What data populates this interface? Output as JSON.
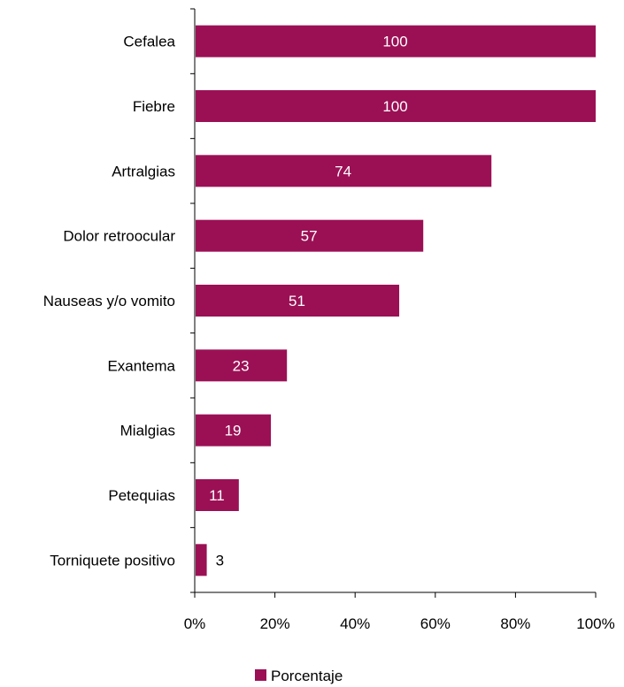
{
  "chart_data": {
    "type": "bar",
    "orientation": "horizontal",
    "categories": [
      "Cefalea",
      "Fiebre",
      "Artralgias",
      "Dolor retroocular",
      "Nauseas y/o vomito",
      "Exantema",
      "Mialgias",
      "Petequias",
      "Torniquete positivo"
    ],
    "series": [
      {
        "name": "Porcentaje",
        "values": [
          100,
          100,
          74,
          57,
          51,
          23,
          19,
          11,
          3
        ],
        "color": "#9B1055"
      }
    ],
    "x_ticks": [
      "0%",
      "20%",
      "40%",
      "60%",
      "80%",
      "100%"
    ],
    "xlim": [
      0,
      100
    ],
    "grid": false,
    "legend_position": "bottom",
    "title": "",
    "xlabel": "",
    "ylabel": ""
  }
}
